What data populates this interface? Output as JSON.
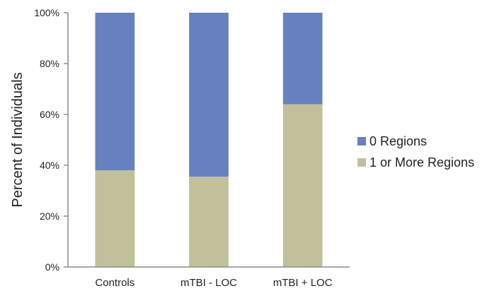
{
  "chart_data": {
    "type": "bar",
    "stacked": true,
    "categories": [
      "Controls",
      "mTBI - LOC",
      "mTBI + LOC"
    ],
    "series": [
      {
        "name": "1 or More Regions",
        "values": [
          38,
          35.5,
          64
        ],
        "color": "#c2bf9b"
      },
      {
        "name": "0 Regions",
        "values": [
          62,
          64.5,
          36
        ],
        "color": "#6781c0"
      }
    ],
    "ylabel": "Percent of Individuals",
    "xlabel": "",
    "ylim": [
      0,
      100
    ],
    "yticks": [
      0,
      20,
      40,
      60,
      80,
      100
    ],
    "ytick_suffix": "%",
    "grid": false,
    "legend_order": [
      "0 Regions",
      "1 or More Regions"
    ],
    "legend_position": "right"
  }
}
